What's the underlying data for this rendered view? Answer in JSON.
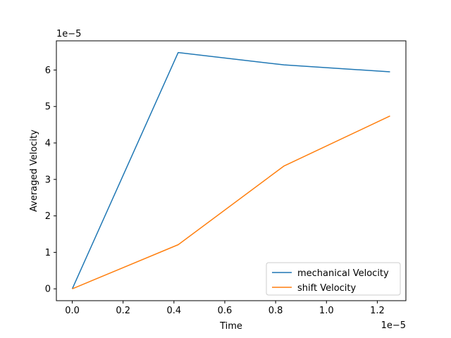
{
  "chart_data": {
    "type": "line",
    "title": "",
    "xlabel": "Time",
    "ylabel": "Averaged Velocity",
    "x_offset_text": "1e−5",
    "y_offset_text": "1e−5",
    "xlim": [
      -0.0625,
      1.3125
    ],
    "ylim": [
      -0.325,
      6.8
    ],
    "x_ticks": [
      0.0,
      0.2,
      0.4,
      0.6,
      0.8,
      1.0,
      1.2
    ],
    "x_tick_labels": [
      "0.0",
      "0.2",
      "0.4",
      "0.6",
      "0.8",
      "1.0",
      "1.2"
    ],
    "y_ticks": [
      0,
      1,
      2,
      3,
      4,
      5,
      6
    ],
    "y_tick_labels": [
      "0",
      "1",
      "2",
      "3",
      "4",
      "5",
      "6"
    ],
    "grid": false,
    "legend_position": "lower-right",
    "series": [
      {
        "name": "mechanical Velocity",
        "color": "#1f77b4",
        "x": [
          0.0,
          0.4167,
          0.8333,
          1.25
        ],
        "y": [
          0.0,
          6.48,
          6.14,
          5.95
        ]
      },
      {
        "name": "shift Velocity",
        "color": "#ff7f0e",
        "x": [
          0.0,
          0.4167,
          0.8333,
          1.25
        ],
        "y": [
          0.0,
          1.21,
          3.37,
          4.74
        ]
      }
    ]
  }
}
